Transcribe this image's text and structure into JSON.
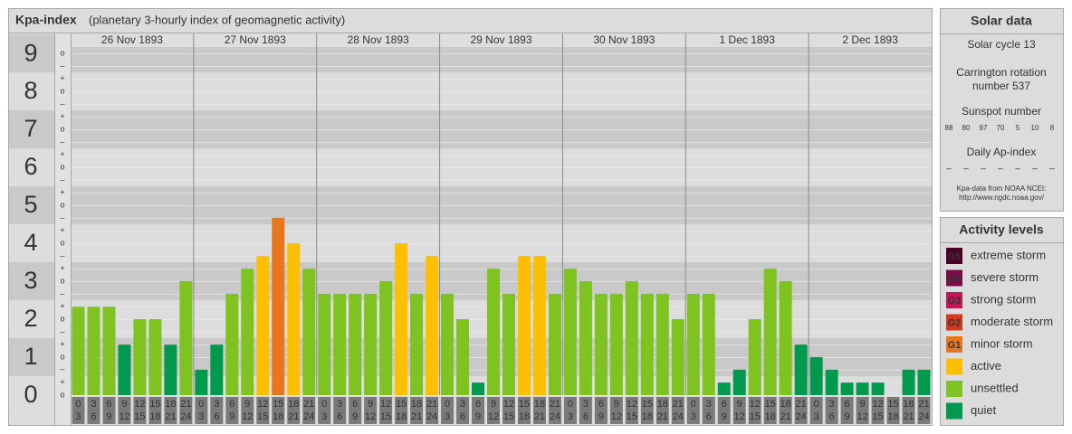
{
  "chart_data": {
    "type": "bar",
    "title": "Kpa-index",
    "subtitle": "(planetary 3-hourly index of geomagnetic activity)",
    "dates": [
      "26 Nov 1893",
      "27 Nov 1893",
      "28 Nov 1893",
      "29 Nov 1893",
      "30 Nov 1893",
      "1 Dec 1893",
      "2 Dec 1893"
    ],
    "categories": [
      [
        "0",
        "3"
      ],
      [
        "3",
        "6"
      ],
      [
        "6",
        "9"
      ],
      [
        "9",
        "12"
      ],
      [
        "12",
        "15"
      ],
      [
        "15",
        "18"
      ],
      [
        "18",
        "21"
      ],
      [
        "21",
        "24"
      ],
      [
        "0",
        "3"
      ],
      [
        "3",
        "6"
      ],
      [
        "6",
        "9"
      ],
      [
        "9",
        "12"
      ],
      [
        "12",
        "15"
      ],
      [
        "15",
        "18"
      ],
      [
        "18",
        "21"
      ],
      [
        "21",
        "24"
      ],
      [
        "0",
        "3"
      ],
      [
        "3",
        "6"
      ],
      [
        "6",
        "9"
      ],
      [
        "9",
        "12"
      ],
      [
        "12",
        "15"
      ],
      [
        "15",
        "18"
      ],
      [
        "18",
        "21"
      ],
      [
        "21",
        "24"
      ],
      [
        "0",
        "3"
      ],
      [
        "3",
        "6"
      ],
      [
        "6",
        "9"
      ],
      [
        "9",
        "12"
      ],
      [
        "12",
        "15"
      ],
      [
        "15",
        "18"
      ],
      [
        "18",
        "21"
      ],
      [
        "21",
        "24"
      ],
      [
        "0",
        "3"
      ],
      [
        "3",
        "6"
      ],
      [
        "6",
        "9"
      ],
      [
        "9",
        "12"
      ],
      [
        "12",
        "15"
      ],
      [
        "15",
        "18"
      ],
      [
        "18",
        "21"
      ],
      [
        "21",
        "24"
      ],
      [
        "0",
        "3"
      ],
      [
        "3",
        "6"
      ],
      [
        "6",
        "9"
      ],
      [
        "9",
        "12"
      ],
      [
        "12",
        "15"
      ],
      [
        "15",
        "18"
      ],
      [
        "18",
        "21"
      ],
      [
        "21",
        "24"
      ],
      [
        "0",
        "3"
      ],
      [
        "3",
        "6"
      ],
      [
        "6",
        "9"
      ],
      [
        "9",
        "12"
      ],
      [
        "12",
        "15"
      ],
      [
        "15",
        "18"
      ],
      [
        "18",
        "21"
      ],
      [
        "21",
        "24"
      ]
    ],
    "values": [
      2.33,
      2.33,
      2.33,
      1.33,
      2,
      2,
      1.33,
      3,
      0.67,
      1.33,
      2.67,
      3.33,
      3.67,
      4.67,
      4,
      3.33,
      2.67,
      2.67,
      2.67,
      2.67,
      3,
      4,
      2.67,
      3.67,
      2.67,
      2,
      0.33,
      3.33,
      2.67,
      3.67,
      3.67,
      2.67,
      3.33,
      3,
      2.67,
      2.67,
      3,
      2.67,
      2.67,
      2,
      2.67,
      2.67,
      0.33,
      0.67,
      2,
      3.33,
      3,
      1.33,
      1,
      0.67,
      0.33,
      0.33,
      0.33,
      0,
      0.67,
      0.67
    ],
    "colors": [
      "#7ec31f",
      "#7ec31f",
      "#7ec31f",
      "#00994e",
      "#7ec31f",
      "#7ec31f",
      "#00994e",
      "#7ec31f",
      "#00994e",
      "#00994e",
      "#7ec31f",
      "#7ec31f",
      "#fcc000",
      "#e8761c",
      "#fcc000",
      "#7ec31f",
      "#7ec31f",
      "#7ec31f",
      "#7ec31f",
      "#7ec31f",
      "#7ec31f",
      "#fcc000",
      "#7ec31f",
      "#fcc000",
      "#7ec31f",
      "#7ec31f",
      "#00994e",
      "#7ec31f",
      "#7ec31f",
      "#fcc000",
      "#fcc000",
      "#7ec31f",
      "#7ec31f",
      "#7ec31f",
      "#7ec31f",
      "#7ec31f",
      "#7ec31f",
      "#7ec31f",
      "#7ec31f",
      "#7ec31f",
      "#7ec31f",
      "#7ec31f",
      "#00994e",
      "#00994e",
      "#7ec31f",
      "#7ec31f",
      "#7ec31f",
      "#00994e",
      "#00994e",
      "#00994e",
      "#00994e",
      "#00994e",
      "#00994e",
      "#00994e",
      "#00994e",
      "#00994e"
    ],
    "ylim": [
      0,
      9.17
    ],
    "yticks": [
      0,
      1,
      2,
      3,
      4,
      5,
      6,
      7,
      8,
      9
    ],
    "minor_ticks": [
      {
        "value": 0,
        "label": "o"
      },
      {
        "value": 0.33,
        "label": "+"
      },
      {
        "value": 0.67,
        "label": "–"
      },
      {
        "value": 1,
        "label": "o"
      },
      {
        "value": 1.33,
        "label": "+"
      },
      {
        "value": 1.67,
        "label": "–"
      },
      {
        "value": 2,
        "label": "o"
      },
      {
        "value": 2.33,
        "label": "+"
      },
      {
        "value": 2.67,
        "label": "–"
      },
      {
        "value": 3,
        "label": "o"
      },
      {
        "value": 3.33,
        "label": "+"
      },
      {
        "value": 3.67,
        "label": "–"
      },
      {
        "value": 4,
        "label": "o"
      },
      {
        "value": 4.33,
        "label": "+"
      },
      {
        "value": 4.67,
        "label": "–"
      },
      {
        "value": 5,
        "label": "o"
      },
      {
        "value": 5.33,
        "label": "+"
      },
      {
        "value": 5.67,
        "label": "–"
      },
      {
        "value": 6,
        "label": "o"
      },
      {
        "value": 6.33,
        "label": "+"
      },
      {
        "value": 6.67,
        "label": "–"
      },
      {
        "value": 7,
        "label": "o"
      },
      {
        "value": 7.33,
        "label": "+"
      },
      {
        "value": 7.67,
        "label": "–"
      },
      {
        "value": 8,
        "label": "o"
      },
      {
        "value": 8.33,
        "label": "+"
      },
      {
        "value": 8.67,
        "label": "–"
      },
      {
        "value": 9,
        "label": "o"
      }
    ],
    "grid": true
  },
  "solar_data": {
    "title": "Solar data",
    "solar_cycle": "Solar cycle 13",
    "carrington": [
      "Carrington rotation",
      "number 537"
    ],
    "sunspot_label": "Sunspot number",
    "sunspot_numbers": [
      88,
      80,
      97,
      70,
      5,
      10,
      8
    ],
    "ap_label": "Daily Ap-index",
    "ap_index": [
      "–",
      "–",
      "–",
      "–",
      "–",
      "–",
      "–"
    ],
    "source": [
      "Kpa-data from NOAA NCEI:",
      "http://www.ngdc.noaa.gov/"
    ]
  },
  "activity_levels": {
    "title": "Activity levels",
    "items": [
      {
        "code": "G5",
        "name": "extreme storm",
        "color": "#4d0026"
      },
      {
        "code": "G4",
        "name": "severe storm",
        "color": "#7a0d47"
      },
      {
        "code": "G3",
        "name": "strong storm",
        "color": "#c2185b"
      },
      {
        "code": "G2",
        "name": "moderate storm",
        "color": "#d03b1e"
      },
      {
        "code": "G1",
        "name": "minor storm",
        "color": "#e8761c"
      },
      {
        "name": "active",
        "color": "#fcc000"
      },
      {
        "name": "unsettled",
        "color": "#7ec31f"
      },
      {
        "name": "quiet",
        "color": "#00994e"
      }
    ]
  }
}
